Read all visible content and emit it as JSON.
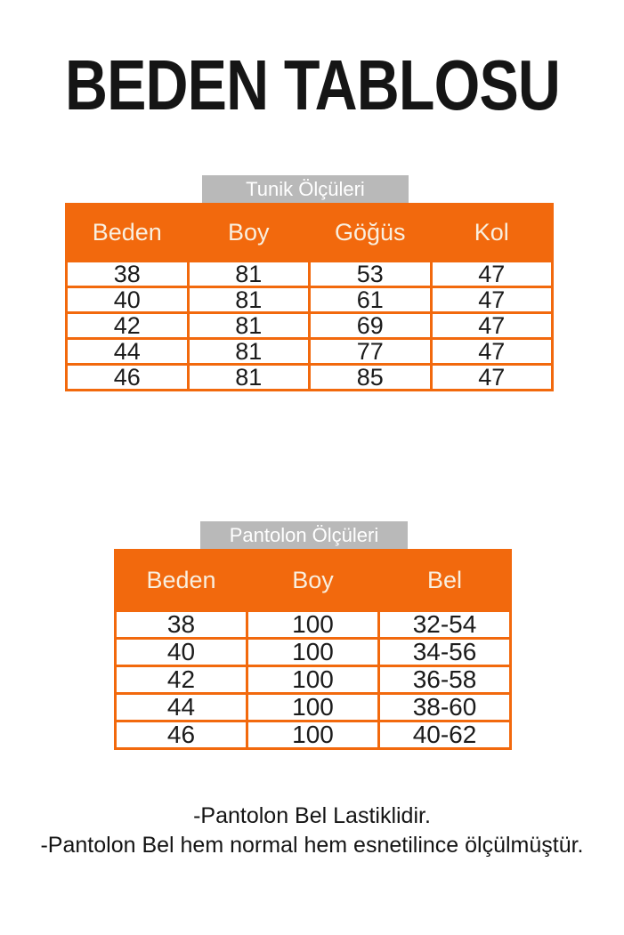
{
  "page": {
    "title": "BEDEN TABLOSU"
  },
  "tables": [
    {
      "label": "Tunik Ölçüleri",
      "headers": [
        "Beden",
        "Boy",
        "Göğüs",
        "Kol"
      ],
      "rows": [
        [
          "38",
          "81",
          "53",
          "47"
        ],
        [
          "40",
          "81",
          "61",
          "47"
        ],
        [
          "42",
          "81",
          "69",
          "47"
        ],
        [
          "44",
          "81",
          "77",
          "47"
        ],
        [
          "46",
          "81",
          "85",
          "47"
        ]
      ]
    },
    {
      "label": "Pantolon Ölçüleri",
      "headers": [
        "Beden",
        "Boy",
        "Bel"
      ],
      "rows": [
        [
          "38",
          "100",
          "32-54"
        ],
        [
          "40",
          "100",
          "34-56"
        ],
        [
          "42",
          "100",
          "36-58"
        ],
        [
          "44",
          "100",
          "38-60"
        ],
        [
          "46",
          "100",
          "40-62"
        ]
      ]
    }
  ],
  "notes": [
    "-Pantolon Bel Lastiklidir.",
    "-Pantolon Bel hem normal hem esnetilince ölçülmüştür."
  ],
  "colors": {
    "accent_orange": "#F2690D",
    "label_gray": "#B9B9B9",
    "header_text": "#F9EFDF"
  }
}
